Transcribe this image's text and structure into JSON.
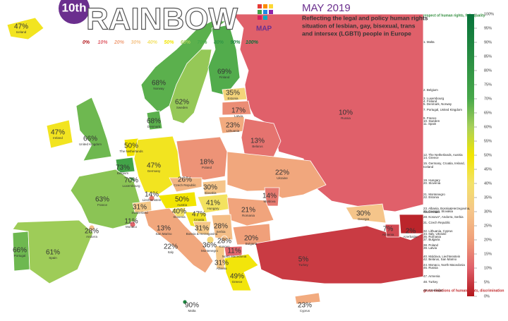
{
  "header": {
    "ordinal": "10th",
    "title": "RAINBOW",
    "subtitle": "MAP",
    "date": "MAY 2019",
    "description": [
      "Reflecting the legal and policy human rights",
      "situation of lesbian, gay, bisexual, trans",
      "and intersex (LGBTI) people in Europe"
    ]
  },
  "scale_labels": [
    "0%",
    "10%",
    "20%",
    "30%",
    "40%",
    "50%",
    "60%",
    "70%",
    "80%",
    "90%",
    "100%"
  ],
  "legend": {
    "top": "respect of human rights, full equality",
    "bottom": "gross violations of human rights, discrimination",
    "ticks": [
      "100%",
      "95%",
      "90%",
      "85%",
      "80%",
      "75%",
      "70%",
      "65%",
      "60%",
      "55%",
      "50%",
      "45%",
      "40%",
      "35%",
      "30%",
      "25%",
      "20%",
      "15%",
      "10%",
      "5%",
      "0%"
    ]
  },
  "rankings": [
    [
      "1. Malta"
    ],
    [
      "2. Belgium"
    ],
    [
      "3. Luxembourg"
    ],
    [
      "4. Finland"
    ],
    [
      "5. Denmark, Norway"
    ],
    [
      "7. Portugal, United Kingdom"
    ],
    [
      "9. France"
    ],
    [
      "10. Sweden"
    ],
    [
      "11. Spain"
    ],
    [
      "12. The Netherlands, Austria"
    ],
    [
      "14. Greece"
    ],
    [
      "15. Germany, Croatia, Ireland,",
      "Iceland"
    ],
    [
      "19. Hungary"
    ],
    [
      "20. Slovenia"
    ],
    [
      "21. Montenegro"
    ],
    [
      "22. Estonia"
    ],
    [
      "23. Albania, Bosnia&Herzegovina,",
      "Switzerland"
    ],
    [
      "26. Georgia, Slovakia"
    ],
    [
      "28. Kosovo*, Andorra, Serbia"
    ],
    [
      "31. Czech Republic"
    ],
    [
      "32. Lithuania, Cyprus"
    ],
    [
      "34. Italy, Ukraine"
    ],
    [
      "36. Romania"
    ],
    [
      "37. Bulgaria"
    ],
    [
      "38. Poland"
    ],
    [
      "39. Latvia"
    ],
    [
      "40. Moldova, Liechtenstein"
    ],
    [
      "42. Belarus, San Marino"
    ],
    [
      "44. Monaco, North Macedonia"
    ],
    [
      "46. Russia"
    ],
    [
      "47. Armenia"
    ],
    [
      "48. Turkey"
    ],
    [
      "49. Azerbaijan"
    ]
  ],
  "countries": [
    {
      "name": "Iceland",
      "value": 47,
      "label": "47%"
    },
    {
      "name": "Norway",
      "value": 68,
      "label": "68%"
    },
    {
      "name": "Sweden",
      "value": 62,
      "label": "62%"
    },
    {
      "name": "Finland",
      "value": 69,
      "label": "69%"
    },
    {
      "name": "Russia",
      "value": 10,
      "label": "10%"
    },
    {
      "name": "Estonia",
      "value": 35,
      "label": "35%"
    },
    {
      "name": "Latvia",
      "value": 17,
      "label": "17%"
    },
    {
      "name": "Lithuania",
      "value": 23,
      "label": "23%"
    },
    {
      "name": "Belarus",
      "value": 13,
      "label": "13%"
    },
    {
      "name": "Denmark",
      "value": 68,
      "label": "68%"
    },
    {
      "name": "Ireland",
      "value": 47,
      "label": "47%"
    },
    {
      "name": "United Kingdom",
      "value": 66,
      "label": "66%"
    },
    {
      "name": "The Netherlands",
      "value": 50,
      "label": "50%"
    },
    {
      "name": "Belgium",
      "value": 73,
      "label": "73%"
    },
    {
      "name": "Luxembourg",
      "value": 70,
      "label": "70%"
    },
    {
      "name": "Germany",
      "value": 47,
      "label": "47%"
    },
    {
      "name": "Poland",
      "value": 18,
      "label": "18%"
    },
    {
      "name": "Czech Republic",
      "value": 26,
      "label": "26%"
    },
    {
      "name": "Slovakia",
      "value": 30,
      "label": "30%"
    },
    {
      "name": "Ukraine",
      "value": 22,
      "label": "22%"
    },
    {
      "name": "Moldova",
      "value": 14,
      "label": "14%"
    },
    {
      "name": "France",
      "value": 63,
      "label": "63%"
    },
    {
      "name": "Liechtenstein",
      "value": 14,
      "label": "14%"
    },
    {
      "name": "Switzerland",
      "value": 31,
      "label": "31%"
    },
    {
      "name": "Austria",
      "value": 50,
      "label": "50%"
    },
    {
      "name": "Hungary",
      "value": 41,
      "label": "41%"
    },
    {
      "name": "Romania",
      "value": 21,
      "label": "21%"
    },
    {
      "name": "Slovenia",
      "value": 40,
      "label": "40%"
    },
    {
      "name": "Croatia",
      "value": 47,
      "label": "47%"
    },
    {
      "name": "Bosnia & Herzegovina",
      "value": 31,
      "label": "31%"
    },
    {
      "name": "Serbia",
      "value": 28,
      "label": "28%"
    },
    {
      "name": "Monaco",
      "value": 11,
      "label": "11%"
    },
    {
      "name": "San Marino",
      "value": 13,
      "label": "13%"
    },
    {
      "name": "Italy",
      "value": 22,
      "label": "22%"
    },
    {
      "name": "Montenegro",
      "value": 36,
      "label": "36%"
    },
    {
      "name": "Kosovo",
      "value": 28,
      "label": "28%"
    },
    {
      "name": "North Macedonia",
      "value": 11,
      "label": "11%"
    },
    {
      "name": "Bulgaria",
      "value": 20,
      "label": "20%"
    },
    {
      "name": "Albania",
      "value": 31,
      "label": "31%"
    },
    {
      "name": "Portugal",
      "value": 66,
      "label": "66%"
    },
    {
      "name": "Spain",
      "value": 61,
      "label": "61%"
    },
    {
      "name": "Andorra",
      "value": 28,
      "label": "28%"
    },
    {
      "name": "Greece",
      "value": 49,
      "label": "49%"
    },
    {
      "name": "Turkey",
      "value": 5,
      "label": "5%"
    },
    {
      "name": "Georgia",
      "value": 30,
      "label": "30%"
    },
    {
      "name": "Armenia",
      "value": 7,
      "label": "7%"
    },
    {
      "name": "Azerbaijan",
      "value": 2,
      "label": "2%"
    },
    {
      "name": "Malta",
      "value": 90,
      "label": "90%"
    },
    {
      "name": "Cyprus",
      "value": 23,
      "label": "23%"
    }
  ]
}
